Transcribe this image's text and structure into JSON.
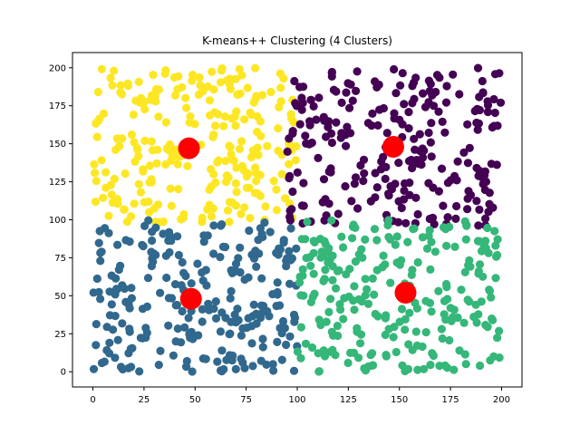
{
  "chart_data": {
    "type": "scatter",
    "title": "K-means++ Clustering (4 Clusters)",
    "xlabel": "",
    "ylabel": "",
    "xlim": [
      -10,
      210
    ],
    "ylim": [
      -10,
      210
    ],
    "xticks": [
      0,
      25,
      50,
      75,
      100,
      125,
      150,
      175,
      200
    ],
    "yticks": [
      0,
      25,
      50,
      75,
      100,
      125,
      150,
      175,
      200
    ],
    "xtick_labels": [
      "0",
      "25",
      "50",
      "75",
      "100",
      "125",
      "150",
      "175",
      "200"
    ],
    "ytick_labels": [
      "0",
      "25",
      "50",
      "75",
      "100",
      "125",
      "150",
      "175",
      "200"
    ],
    "grid": false,
    "legend": "none",
    "clusters": [
      {
        "color": "#fde725",
        "x_range": [
          0,
          100
        ],
        "y_range": [
          98,
          200
        ],
        "count": 250
      },
      {
        "color": "#440154",
        "x_range": [
          95,
          200
        ],
        "y_range": [
          95,
          200
        ],
        "count": 250
      },
      {
        "color": "#31688e",
        "x_range": [
          0,
          100
        ],
        "y_range": [
          0,
          100
        ],
        "count": 250
      },
      {
        "color": "#35b779",
        "x_range": [
          100,
          200
        ],
        "y_range": [
          0,
          100
        ],
        "count": 250
      }
    ],
    "centroids": {
      "color": "#ff0000",
      "points": [
        {
          "x": 47,
          "y": 147
        },
        {
          "x": 147,
          "y": 148
        },
        {
          "x": 48,
          "y": 48
        },
        {
          "x": 153,
          "y": 52
        }
      ]
    }
  }
}
